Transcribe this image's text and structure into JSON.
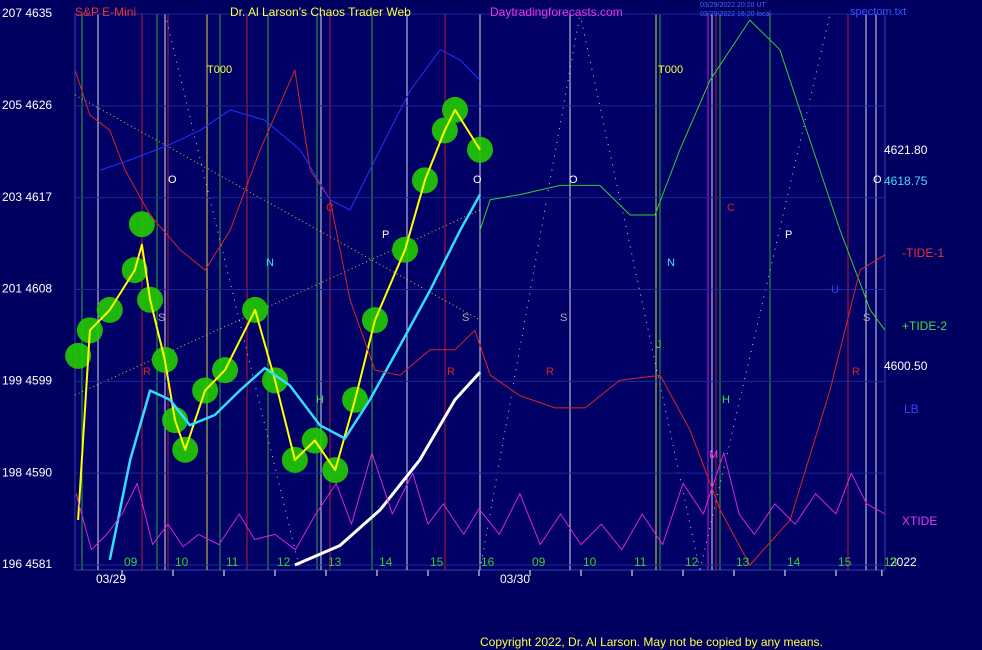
{
  "chart_data": {
    "type": "line",
    "symbol": "S&P E-Mini",
    "title": "Dr. Al Larson's Chaos Trader Web",
    "site": "Daytradingforecasts.com",
    "timestamps": [
      "03/29/2022 20:20 UT",
      "03/29/2022 16:20 local"
    ],
    "file": "spectom.txt",
    "copyright": "Copyright 2022, Dr. Al Larson. May not be copied by any means.",
    "xlim": [
      0,
      16
    ],
    "ylim": [
      4581,
      4635
    ],
    "grid": true,
    "yticks": [
      {
        "value": 4635,
        "label": "207 4635"
      },
      {
        "value": 4626,
        "label": "205 4626"
      },
      {
        "value": 4617,
        "label": "203 4617"
      },
      {
        "value": 4608,
        "label": "201 4608"
      },
      {
        "value": 4599,
        "label": "199 4599"
      },
      {
        "value": 4590,
        "label": "198 4590"
      },
      {
        "value": 4581,
        "label": "196 4581"
      }
    ],
    "xticks": [
      {
        "value": 1,
        "label": "09"
      },
      {
        "value": 2,
        "label": "10"
      },
      {
        "value": 3,
        "label": "11"
      },
      {
        "value": 4,
        "label": "12"
      },
      {
        "value": 5,
        "label": "13"
      },
      {
        "value": 6,
        "label": "14"
      },
      {
        "value": 7,
        "label": "15"
      },
      {
        "value": 8,
        "label": "16"
      },
      {
        "value": 9,
        "label": "09"
      },
      {
        "value": 10,
        "label": "10"
      },
      {
        "value": 11,
        "label": "11"
      },
      {
        "value": 12,
        "label": "12"
      },
      {
        "value": 13,
        "label": "13"
      },
      {
        "value": 14,
        "label": "14"
      },
      {
        "value": 15,
        "label": "15"
      },
      {
        "value": 15.9,
        "label": "13"
      }
    ],
    "date_labels": [
      "03/29",
      "03/30"
    ],
    "right_labels": [
      "4621.80",
      "4618.75",
      "4600.50",
      "2022"
    ],
    "annotations": [
      "T000",
      "T000",
      "O",
      "O",
      "O",
      "O",
      "N",
      "N",
      "S",
      "S",
      "S",
      "S",
      "R",
      "R",
      "R",
      "R",
      "C",
      "C",
      "P",
      "P",
      "H",
      "H",
      "J",
      "M",
      "U"
    ],
    "series": [
      {
        "color": "#22cc00",
        "marker": "bubble",
        "x": [
          0.14,
          0.37,
          0.76,
          1.25,
          1.39,
          1.55,
          1.84,
          2.04,
          2.24,
          2.63,
          3.02,
          3.61,
          4.0,
          4.39,
          4.78,
          5.18,
          5.57,
          5.96,
          6.55,
          6.94,
          7.33,
          7.53,
          8.02
        ],
        "values": [
          4601.5,
          4604.0,
          4606.0,
          4609.9,
          4614.4,
          4607.0,
          4601.1,
          4595.2,
          4592.3,
          4598.1,
          4600.1,
          4606.0,
          4599.1,
          4591.3,
          4593.2,
          4590.3,
          4597.2,
          4605.0,
          4611.9,
          4618.7,
          4623.6,
          4625.6,
          4621.7
        ]
      },
      {
        "color": "#ffff00",
        "width": 2,
        "x": [
          0.14,
          0.37,
          0.76,
          1.25,
          1.39,
          1.55,
          1.84,
          2.04,
          2.24,
          2.63,
          3.02,
          3.61,
          4.0,
          4.39,
          4.78,
          5.18,
          5.57,
          5.96,
          6.55,
          6.94,
          7.33,
          7.53,
          8.02
        ],
        "values": [
          4585.4,
          4604.0,
          4606.0,
          4609.9,
          4612.4,
          4607.0,
          4601.1,
          4595.2,
          4592.3,
          4598.1,
          4600.1,
          4606.0,
          4599.1,
          4591.3,
          4593.2,
          4590.3,
          4597.2,
          4605.0,
          4611.9,
          4618.7,
          4623.6,
          4625.6,
          4621.7
        ]
      },
      {
        "color": "#33ddff",
        "width": 2.5,
        "x": [
          0.76,
          1.16,
          1.55,
          1.94,
          2.33,
          2.82,
          3.31,
          3.8,
          4.29,
          4.88,
          5.37,
          5.86,
          6.45,
          7.04,
          7.63,
          8.02
        ],
        "values": [
          4581.5,
          4591.3,
          4598.1,
          4597.2,
          4594.7,
          4595.7,
          4598.1,
          4600.3,
          4598.6,
          4594.7,
          4593.4,
          4597.2,
          4602.5,
          4607.9,
          4613.8,
          4617.3
        ]
      },
      {
        "color": "#ffffff",
        "width": 3,
        "x": [
          4.39,
          5.27,
          6.06,
          6.84,
          7.53,
          8.02
        ],
        "values": [
          4581.0,
          4582.9,
          4586.4,
          4591.3,
          4597.2,
          4599.9
        ]
      },
      {
        "name": "+TIDE-2",
        "color": "#33cc33",
        "width": 1,
        "x": [
          8.02,
          8.22,
          8.8,
          9.59,
          10.37,
          10.96,
          11.45,
          11.94,
          12.53,
          13.31,
          13.9,
          14.49,
          15.08,
          15.67,
          15.96
        ],
        "values": [
          4613.8,
          4616.8,
          4617.3,
          4618.2,
          4618.2,
          4615.3,
          4615.3,
          4621.7,
          4628.5,
          4634.4,
          4631.5,
          4622.6,
          4613.8,
          4606.0,
          4604.0
        ]
      },
      {
        "name": "-TIDE-1",
        "color": "#dd2222",
        "width": 1,
        "x": [
          0.08,
          0.37,
          0.76,
          1.06,
          1.55,
          2.14,
          2.63,
          3.12,
          3.71,
          4.39,
          4.69,
          5.08,
          5.47,
          5.96,
          6.45,
          7.04,
          7.53,
          7.92,
          8.22,
          8.8,
          9.49,
          10.08,
          10.76,
          11.55,
          12.14,
          12.73,
          13.31,
          14.1,
          14.88,
          15.47,
          15.96
        ],
        "values": [
          4629.5,
          4625.1,
          4623.6,
          4619.7,
          4615.3,
          4611.9,
          4609.9,
          4613.8,
          4621.7,
          4629.5,
          4619.7,
          4616.8,
          4607.0,
          4600.1,
          4599.6,
          4602.1,
          4602.1,
          4604.0,
          4599.6,
          4597.6,
          4596.4,
          4596.4,
          4599.1,
          4599.6,
          4594.2,
          4586.4,
          4581.0,
          4585.4,
          4598.1,
          4609.9,
          4611.4
        ]
      },
      {
        "name": "LB",
        "color": "#2233ff",
        "width": 1,
        "x": [
          0.57,
          1.16,
          1.94,
          2.53,
          3.12,
          3.8,
          4.49,
          5.08,
          5.47,
          6.06,
          6.65,
          7.24,
          7.63,
          8.02
        ],
        "values": [
          4619.7,
          4620.7,
          4622.2,
          4623.6,
          4625.6,
          4624.6,
          4621.7,
          4616.8,
          4615.8,
          4621.7,
          4627.5,
          4631.5,
          4630.5,
          4628.5
        ]
      },
      {
        "name": "XTIDE",
        "color": "#dd22dd",
        "width": 1,
        "x": [
          0.1,
          0.4,
          0.7,
          1.0,
          1.3,
          1.6,
          1.9,
          2.2,
          2.5,
          2.9,
          3.3,
          3.6,
          4.0,
          4.4,
          4.8,
          5.2,
          5.5,
          5.9,
          6.3,
          6.7,
          7.0,
          7.3,
          7.7,
          8.0,
          8.4,
          8.8,
          9.2,
          9.6,
          10.0,
          10.4,
          10.8,
          11.2,
          11.6,
          12.0,
          12.4,
          12.8,
          13.1,
          13.4,
          13.8,
          14.2,
          14.6,
          15.0,
          15.3,
          15.6,
          15.96
        ],
        "values": [
          4588,
          4582.5,
          4584,
          4586,
          4589,
          4583,
          4585,
          4582.8,
          4584,
          4583,
          4586,
          4583.5,
          4584,
          4582.5,
          4586,
          4589,
          4585,
          4592,
          4586,
          4590,
          4585,
          4587,
          4584,
          4586.5,
          4584,
          4588,
          4583,
          4586,
          4583,
          4585,
          4582.5,
          4586,
          4583,
          4589,
          4586,
          4592,
          4586,
          4584,
          4587,
          4585,
          4588,
          4586,
          4590,
          4587,
          4586
        ]
      }
    ]
  }
}
